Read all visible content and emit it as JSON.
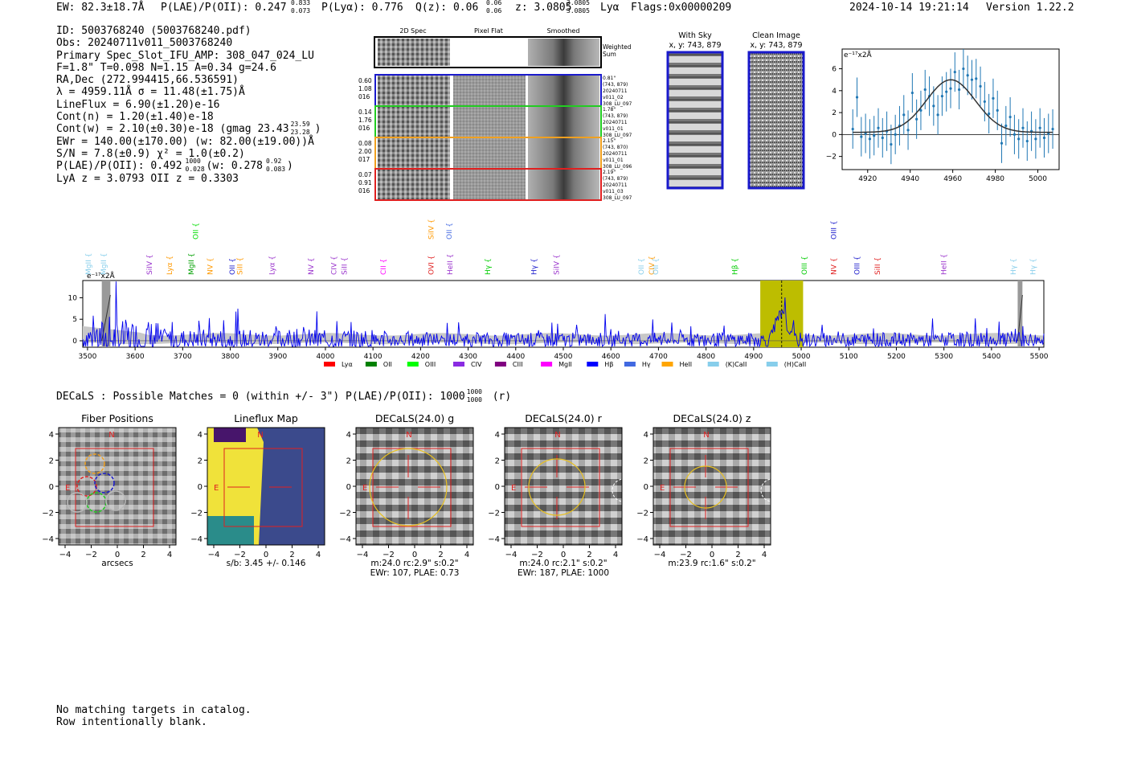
{
  "header": {
    "ew": "EW: 82.3±18.7Å",
    "plae": "P(LAE)/P(OII): 0.247",
    "plae_hi": "0.833",
    "plae_lo": "0.073",
    "plya": "P(Lyα): 0.776",
    "qz": "Q(z): 0.06",
    "qz_hi": "0.06",
    "qz_lo": "0.06",
    "z": "z: 3.0805",
    "z_hi": "3.0805",
    "z_lo": "3.0805",
    "line": "Lyα",
    "flags": "Flags:0x00000209",
    "timestamp": "2024-10-14 19:21:14",
    "version": "Version 1.22.2"
  },
  "info": {
    "id": "ID: 5003768240 (5003768240.pdf)",
    "obs": "Obs: 20240711v011_5003768240",
    "primary": "Primary Spec_Slot_IFU_AMP: 308_047_024_LU",
    "fwhm": "F=1.8\"  T=0.098  N=1.15  A=0.34  g=24.6",
    "radec": "RA,Dec (272.994415,66.536591)",
    "lambda": "λ = 4959.11Å   σ = 11.48(±1.75)Å",
    "lineflux": "LineFlux = 6.90(±1.20)e-16",
    "contn": "Cont(n) = 1.20(±1.40)e-18",
    "contw": "Cont(w) = 2.10(±0.30)e-18 (gmag 23.43",
    "contw_hi": "23.59",
    "contw_lo": "23.28",
    "contw_end": ")",
    "ewr": "EWr = 140.00(±170.00) (w: 82.00(±19.00))Å",
    "sn": "S/N = 7.8(±0.9)  χ² = 1.0(±0.2)",
    "plae2": "P(LAE)/P(OII): 0.492",
    "plae2_hi": "1000",
    "plae2_lo": "0.028",
    "plae2_w": "(w: 0.278",
    "plae2_w_hi": "0.92",
    "plae2_w_lo": "0.083",
    "plae2_end": ")",
    "lyaz": "LyA z = 3.0793   OII z = 0.3303"
  },
  "cutouts": {
    "headers": [
      "2D Spec",
      "Pixel Flat",
      "Smoothed"
    ],
    "weighted_sum": [
      "Weighted",
      "Sum"
    ],
    "rows": [
      {
        "nums": [
          "0.60",
          "1.08",
          "016"
        ],
        "meta": [
          "0.81\"",
          "(743, 879)",
          "20240711",
          "v011_02",
          "308_LU_097"
        ],
        "color": "#1a1acc"
      },
      {
        "nums": [
          "0.14",
          "1.76",
          "016"
        ],
        "meta": [
          "1.78\"",
          "(743, 879)",
          "20240711",
          "v011_01",
          "308_LU_097"
        ],
        "color": "#22cc22"
      },
      {
        "nums": [
          "0.08",
          "2.00",
          "017"
        ],
        "meta": [
          "2.15\"",
          "(743, 870)",
          "20240711",
          "v011_01",
          "308_LU_096"
        ],
        "color": "#f0a020"
      },
      {
        "nums": [
          "0.07",
          "0.91",
          "016"
        ],
        "meta": [
          "2.19\"",
          "(743, 879)",
          "20240711",
          "v011_03",
          "308_LU_097"
        ],
        "color": "#e02020"
      }
    ]
  },
  "sky_panel": {
    "title": "With Sky",
    "coords": "x, y: 743, 879"
  },
  "clean_panel": {
    "title": "Clean Image",
    "coords": "x, y: 743, 879"
  },
  "zoom_chart": {
    "unit_label": "e⁻¹⁷x2Å"
  },
  "spectrum_chart": {
    "unit_label": "e⁻¹⁷x2Å"
  },
  "chart_data": [
    {
      "type": "scatter",
      "ylabel": "e⁻¹⁷x2Å",
      "xlim": [
        4908,
        5010
      ],
      "ylim": [
        -3.2,
        7.8
      ],
      "xticks": [
        4920,
        4940,
        4960,
        4980,
        5000
      ],
      "yticks": [
        -2,
        0,
        2,
        4,
        6
      ],
      "series": [
        {
          "x": [
            4913,
            4915,
            4917,
            4919,
            4921,
            4923,
            4925,
            4927,
            4929,
            4931,
            4933,
            4935,
            4937,
            4939,
            4941,
            4943,
            4945,
            4947,
            4949,
            4951,
            4953,
            4955,
            4957,
            4959,
            4961,
            4963,
            4965,
            4967,
            4969,
            4971,
            4973,
            4975,
            4977,
            4979,
            4981,
            4983,
            4985,
            4987,
            4989,
            4991,
            4993,
            4995,
            4997,
            4999,
            5001,
            5003,
            5005,
            5007
          ],
          "y": [
            0.5,
            3.4,
            -0.2,
            0.1,
            -0.4,
            -0.1,
            0.6,
            -0.3,
            0.3,
            -0.9,
            0.0,
            0.8,
            1.8,
            0.4,
            3.8,
            1.4,
            2.2,
            4.1,
            3.5,
            2.6,
            1.8,
            3.5,
            3.9,
            4.2,
            5.7,
            4.1,
            6.0,
            5.4,
            5.0,
            5.1,
            4.4,
            3.0,
            1.9,
            3.3,
            2.2,
            -0.8,
            0.8,
            1.6,
            0.0,
            -0.4,
            0.6,
            -0.6,
            0.3,
            -0.4,
            0.6,
            -0.3,
            0.1,
            0.5
          ],
          "err": [
            1.8,
            1.8,
            1.8,
            1.8,
            1.8,
            1.8,
            1.8,
            1.8,
            1.8,
            1.8,
            1.8,
            1.8,
            1.8,
            1.8,
            1.8,
            1.8,
            1.8,
            1.8,
            1.8,
            1.8,
            1.8,
            1.8,
            1.8,
            1.8,
            1.8,
            1.8,
            1.8,
            1.8,
            1.8,
            1.8,
            1.8,
            1.8,
            1.8,
            1.8,
            1.8,
            1.8,
            1.8,
            1.8,
            1.8,
            1.8,
            1.8,
            1.8,
            1.8,
            1.8,
            1.8,
            1.8,
            1.8,
            1.8
          ],
          "color": "#1f77b4"
        }
      ],
      "fit": {
        "amp": 4.8,
        "center": 4959.1,
        "sigma": 11.48,
        "offset": 0.2,
        "color": "#333333"
      }
    },
    {
      "type": "line",
      "ylabel": "e⁻¹⁷x2Å",
      "xlim": [
        3490,
        5510
      ],
      "ylim": [
        -1.5,
        14
      ],
      "xticks": [
        3500,
        3600,
        3700,
        3800,
        3900,
        4000,
        4100,
        4200,
        4300,
        4400,
        4500,
        4600,
        4700,
        4800,
        4900,
        5000,
        5100,
        5200,
        5300,
        5400,
        5500
      ],
      "yticks": [
        0,
        5,
        10
      ],
      "highlight_range": [
        4914,
        5004
      ],
      "line_center": 4959,
      "masked": [
        [
          3530,
          3548
        ],
        [
          5455,
          5465
        ]
      ],
      "emission_lines": [
        {
          "label": "MgII",
          "wave": 3502,
          "color": "#87ceeb",
          "tier": 2
        },
        {
          "label": "MgII",
          "wave": 3534,
          "color": "#87ceeb",
          "tier": 2
        },
        {
          "label": "SiIV",
          "wave": 3630,
          "color": "#9932cc",
          "tier": 2
        },
        {
          "label": "Lyα",
          "wave": 3672,
          "color": "#ff9900",
          "tier": 2
        },
        {
          "label": "MgII",
          "wave": 3718,
          "color": "#00a000",
          "tier": 2
        },
        {
          "label": "OII",
          "wave": 3727,
          "color": "#00dd00",
          "tier": 1
        },
        {
          "label": "NV",
          "wave": 3758,
          "color": "#ff9900",
          "tier": 2
        },
        {
          "label": "OII",
          "wave": 3804,
          "color": "#1a1acc",
          "tier": 2
        },
        {
          "label": "SiII",
          "wave": 3820,
          "color": "#ff9900",
          "tier": 2
        },
        {
          "label": "Lyα",
          "wave": 3888,
          "color": "#9932cc",
          "tier": 2
        },
        {
          "label": "NV",
          "wave": 3970,
          "color": "#9932cc",
          "tier": 2
        },
        {
          "label": "CIV",
          "wave": 4018,
          "color": "#9932cc",
          "tier": 2
        },
        {
          "label": "SiII",
          "wave": 4040,
          "color": "#9932cc",
          "tier": 2
        },
        {
          "label": "CII",
          "wave": 4122,
          "color": "#ff00ff",
          "tier": 2
        },
        {
          "label": "SiIV",
          "wave": 4222,
          "color": "#ff9900",
          "tier": 1
        },
        {
          "label": "OVI",
          "wave": 4222,
          "color": "#e02020",
          "tier": 2
        },
        {
          "label": "OII",
          "wave": 4260,
          "color": "#4a6fe3",
          "tier": 1
        },
        {
          "label": "HeII",
          "wave": 4262,
          "color": "#9932cc",
          "tier": 2
        },
        {
          "label": "Hγ",
          "wave": 4341,
          "color": "#00cc00",
          "tier": 2
        },
        {
          "label": "Hγ",
          "wave": 4438,
          "color": "#1a1acc",
          "tier": 2
        },
        {
          "label": "SiIV",
          "wave": 4486,
          "color": "#9932cc",
          "tier": 2
        },
        {
          "label": "OII",
          "wave": 4664,
          "color": "#87ceeb",
          "tier": 2
        },
        {
          "label": "CIV",
          "wave": 4686,
          "color": "#ff9900",
          "tier": 2
        },
        {
          "label": "OII",
          "wave": 4694,
          "color": "#87ceeb",
          "tier": 2
        },
        {
          "label": "Hβ",
          "wave": 4861,
          "color": "#00cc00",
          "tier": 2
        },
        {
          "label": "OIII",
          "wave": 5007,
          "color": "#00cc00",
          "tier": 2
        },
        {
          "label": "OIII",
          "wave": 5068,
          "color": "#1a1acc",
          "tier": 1
        },
        {
          "label": "NV",
          "wave": 5068,
          "color": "#e02020",
          "tier": 2
        },
        {
          "label": "OIII",
          "wave": 5117,
          "color": "#1a1acc",
          "tier": 2
        },
        {
          "label": "SiII",
          "wave": 5160,
          "color": "#e02020",
          "tier": 2
        },
        {
          "label": "HeII",
          "wave": 5300,
          "color": "#9932cc",
          "tier": 2
        },
        {
          "label": "Hγ",
          "wave": 5446,
          "color": "#87ceeb",
          "tier": 2
        },
        {
          "label": "Hγ",
          "wave": 5487,
          "color": "#87ceeb",
          "tier": 2
        }
      ],
      "legend": [
        {
          "label": "Lyα",
          "color": "#ff0000"
        },
        {
          "label": "OII",
          "color": "#008000"
        },
        {
          "label": "OIII",
          "color": "#00ff00"
        },
        {
          "label": "CIV",
          "color": "#8a2be2"
        },
        {
          "label": "CIII",
          "color": "#800080"
        },
        {
          "label": "MgII",
          "color": "#ff00ff"
        },
        {
          "label": "Hβ",
          "color": "#0000ff"
        },
        {
          "label": "Hγ",
          "color": "#4169e1"
        },
        {
          "label": "HeII",
          "color": "#ffa500"
        },
        {
          "label": "(K)CaII",
          "color": "#87ceeb"
        },
        {
          "label": "(H)CaII",
          "color": "#87ceeb"
        }
      ]
    }
  ],
  "decals": {
    "summary": "DECaLS : Possible Matches = 0 (within +/- 3\")  P(LAE)/P(OII): 1000",
    "summary_hi": "1000",
    "summary_lo": "1000",
    "summary_end": "(r)",
    "panels": [
      {
        "title": "Fiber Positions",
        "xlabel": "arcsecs",
        "caption1": "",
        "caption2": ""
      },
      {
        "title": "Lineflux Map",
        "xlabel": "s/b: 3.45 +/- 0.146",
        "caption1": "",
        "caption2": ""
      },
      {
        "title": "DECaLS(24.0) g",
        "xlabel": "m:24.0 rc:2.9\"  s:0.2\"",
        "caption1": "EWr: 107, PLAE: 0.73",
        "caption2": ""
      },
      {
        "title": "DECaLS(24.0) r",
        "xlabel": "m:24.0 rc:2.1\"  s:0.2\"",
        "caption1": "EWr: 187, PLAE: 1000",
        "caption2": ""
      },
      {
        "title": "DECaLS(24.0) z",
        "xlabel": "m:23.9 rc:1.6\"  s:0.2\"",
        "caption1": "",
        "caption2": ""
      }
    ],
    "axis_ticks": [
      "−4",
      "−2",
      "0",
      "2",
      "4"
    ],
    "north": "N",
    "east": "E"
  },
  "footer": {
    "line1": "No matching targets in catalog.",
    "line2": "Row intentionally blank."
  }
}
